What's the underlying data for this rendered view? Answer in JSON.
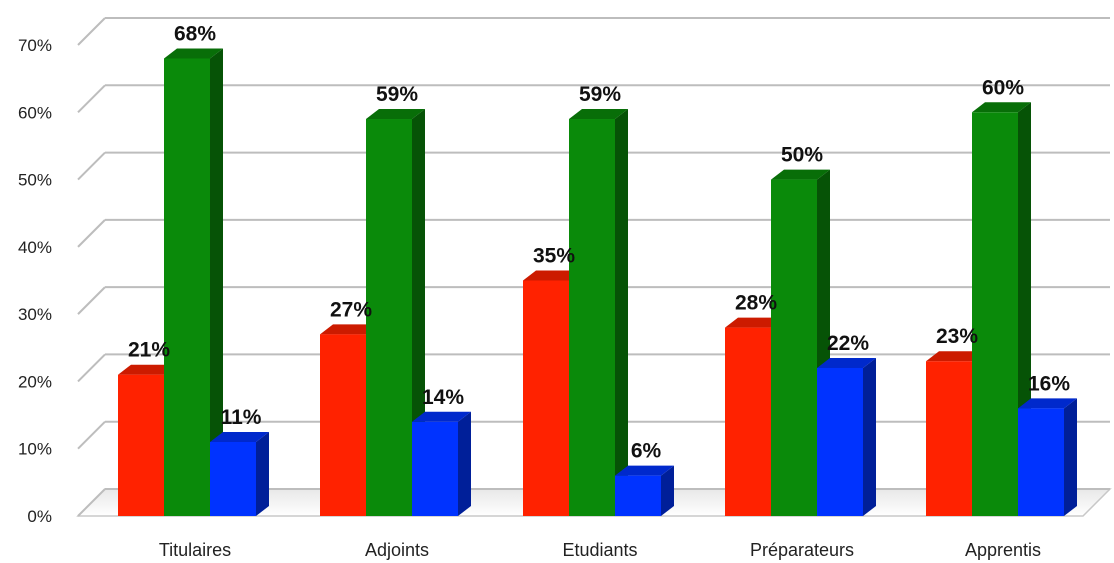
{
  "chart_data": {
    "type": "bar",
    "categories": [
      "Titulaires",
      "Adjoints",
      "Etudiants",
      "Préparateurs",
      "Apprentis"
    ],
    "series": [
      {
        "color": "#ff2200",
        "values": [
          21,
          27,
          35,
          28,
          23
        ]
      },
      {
        "color": "#0a8a0a",
        "values": [
          68,
          59,
          59,
          50,
          60
        ]
      },
      {
        "color": "#0033ff",
        "values": [
          11,
          14,
          6,
          22,
          16
        ]
      }
    ],
    "value_suffix": "%",
    "ylim": [
      0,
      70
    ],
    "yticks": [
      "0%",
      "10%",
      "20%",
      "30%",
      "40%",
      "50%",
      "60%",
      "70%"
    ],
    "grid": true,
    "style": "3d-bars",
    "data_labels": true
  }
}
